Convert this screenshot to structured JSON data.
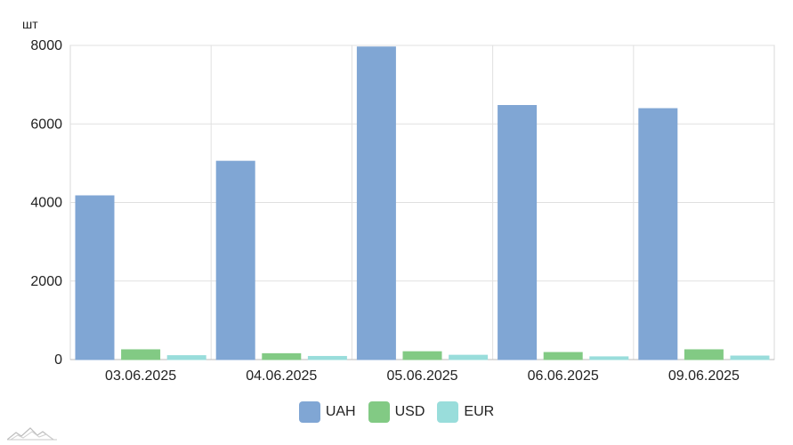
{
  "chart_data": {
    "type": "bar",
    "ylabel": "шт",
    "ylim": [
      0,
      8000
    ],
    "yticks": [
      0,
      2000,
      4000,
      6000,
      8000
    ],
    "grid": true,
    "legend_position": "bottom",
    "categories": [
      "03.06.2025",
      "04.06.2025",
      "05.06.2025",
      "06.06.2025",
      "09.06.2025"
    ],
    "series": [
      {
        "name": "UAH",
        "color": "#80a6d4",
        "values": [
          4170,
          5050,
          7960,
          6470,
          6390
        ]
      },
      {
        "name": "USD",
        "color": "#82ca84",
        "values": [
          250,
          150,
          200,
          180,
          250
        ]
      },
      {
        "name": "EUR",
        "color": "#99dddb",
        "values": [
          100,
          80,
          110,
          70,
          90
        ]
      }
    ]
  }
}
